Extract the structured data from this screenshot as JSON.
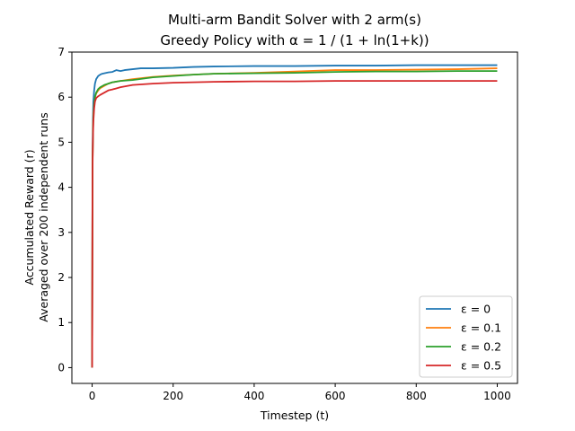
{
  "chart_data": {
    "type": "line",
    "title": [
      "Multi-arm Bandit Solver with 2 arm(s)",
      "Greedy Policy with α = 1 / (1 + ln(1+k))"
    ],
    "xlabel": "Timestep (t)",
    "ylabel": [
      "Accumulated Reward (r)",
      "Averaged over 200 independent runs"
    ],
    "xlim": [
      -50,
      1050
    ],
    "ylim": [
      -0.35,
      7.0
    ],
    "xticks": [
      0,
      200,
      400,
      600,
      800,
      1000
    ],
    "yticks": [
      0,
      1,
      2,
      3,
      4,
      5,
      6,
      7
    ],
    "grid": false,
    "legend_position": "lower right",
    "series": [
      {
        "name": "ε = 0",
        "color": "#1f77b4",
        "x": [
          0,
          1,
          2,
          3,
          5,
          7,
          10,
          15,
          20,
          25,
          30,
          40,
          50,
          60,
          70,
          80,
          100,
          120,
          150,
          200,
          250,
          300,
          400,
          500,
          600,
          700,
          800,
          900,
          1000
        ],
        "y": [
          0,
          4.7,
          5.5,
          5.9,
          6.15,
          6.3,
          6.4,
          6.47,
          6.5,
          6.52,
          6.53,
          6.55,
          6.56,
          6.6,
          6.58,
          6.6,
          6.62,
          6.64,
          6.64,
          6.65,
          6.67,
          6.68,
          6.69,
          6.69,
          6.7,
          6.7,
          6.71,
          6.71,
          6.71
        ]
      },
      {
        "name": "ε = 0.1",
        "color": "#ff7f0e",
        "x": [
          0,
          1,
          2,
          3,
          5,
          7,
          10,
          15,
          20,
          30,
          40,
          50,
          70,
          100,
          150,
          200,
          250,
          300,
          400,
          500,
          600,
          700,
          800,
          900,
          1000
        ],
        "y": [
          0,
          4.5,
          5.2,
          5.6,
          5.85,
          6.0,
          6.08,
          6.15,
          6.2,
          6.25,
          6.3,
          6.33,
          6.36,
          6.4,
          6.45,
          6.48,
          6.5,
          6.52,
          6.54,
          6.57,
          6.6,
          6.6,
          6.61,
          6.62,
          6.64
        ]
      },
      {
        "name": "ε = 0.2",
        "color": "#2ca02c",
        "x": [
          0,
          1,
          2,
          3,
          5,
          7,
          10,
          15,
          20,
          30,
          40,
          50,
          70,
          100,
          150,
          200,
          250,
          300,
          400,
          500,
          600,
          700,
          800,
          900,
          1000
        ],
        "y": [
          0,
          4.5,
          5.2,
          5.55,
          5.85,
          6.0,
          6.1,
          6.18,
          6.22,
          6.27,
          6.3,
          6.33,
          6.36,
          6.38,
          6.44,
          6.47,
          6.5,
          6.52,
          6.53,
          6.54,
          6.56,
          6.57,
          6.57,
          6.58,
          6.58
        ]
      },
      {
        "name": "ε = 0.5",
        "color": "#d62728",
        "x": [
          0,
          1,
          2,
          3,
          5,
          7,
          10,
          15,
          20,
          30,
          40,
          50,
          70,
          100,
          150,
          200,
          250,
          300,
          400,
          500,
          600,
          700,
          800,
          900,
          1000
        ],
        "y": [
          0,
          4.4,
          5.1,
          5.45,
          5.75,
          5.9,
          5.98,
          6.02,
          6.05,
          6.1,
          6.15,
          6.17,
          6.22,
          6.27,
          6.3,
          6.32,
          6.33,
          6.34,
          6.35,
          6.35,
          6.36,
          6.36,
          6.36,
          6.36,
          6.36
        ]
      }
    ]
  }
}
